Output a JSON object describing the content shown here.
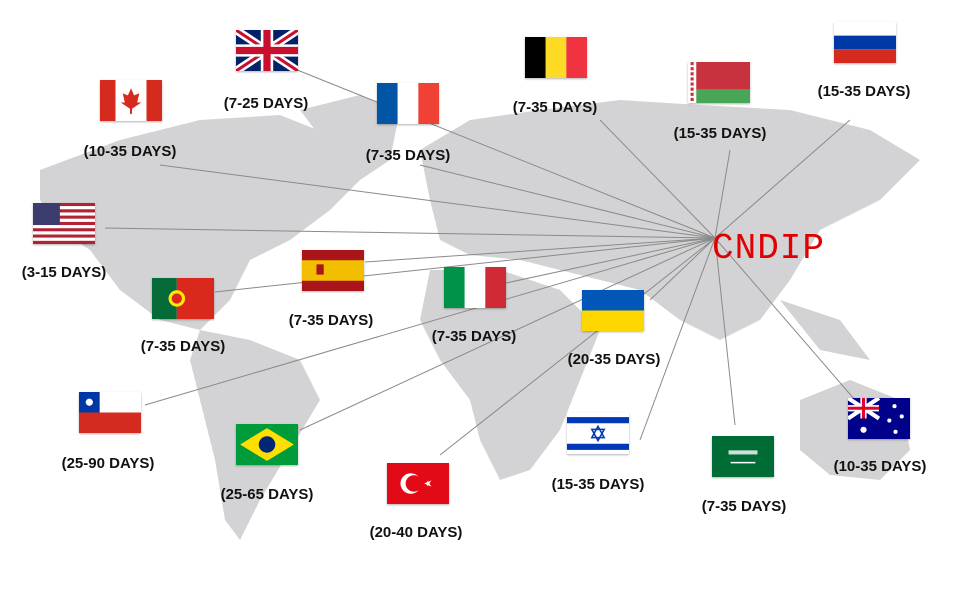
{
  "hub": {
    "label": "CNDIP",
    "color": "#e00000"
  },
  "destinations": [
    {
      "country": "United Kingdom",
      "flag": "uk-flag",
      "days": "(7-25 DAYS)"
    },
    {
      "country": "Canada",
      "flag": "canada-flag",
      "days": "(10-35 DAYS)"
    },
    {
      "country": "France",
      "flag": "france-flag",
      "days": "(7-35 DAYS)"
    },
    {
      "country": "Belgium",
      "flag": "belgium-flag",
      "days": "(7-35 DAYS)"
    },
    {
      "country": "Belarus",
      "flag": "belarus-flag",
      "days": "(15-35 DAYS)"
    },
    {
      "country": "Russia",
      "flag": "russia-flag",
      "days": "(15-35 DAYS)"
    },
    {
      "country": "United States",
      "flag": "usa-flag",
      "days": "(3-15 DAYS)"
    },
    {
      "country": "Spain",
      "flag": "spain-flag",
      "days": "(7-35 DAYS)"
    },
    {
      "country": "Portugal",
      "flag": "portugal-flag",
      "days": "(7-35 DAYS)"
    },
    {
      "country": "Italy",
      "flag": "italy-flag",
      "days": "(7-35 DAYS)"
    },
    {
      "country": "Ukraine",
      "flag": "ukraine-flag",
      "days": "(20-35 DAYS)"
    },
    {
      "country": "Chile",
      "flag": "chile-flag",
      "days": "(25-90 DAYS)"
    },
    {
      "country": "Brazil",
      "flag": "brazil-flag",
      "days": "(25-65 DAYS)"
    },
    {
      "country": "Turkey",
      "flag": "turkey-flag",
      "days": "(20-40 DAYS)"
    },
    {
      "country": "Israel",
      "flag": "israel-flag",
      "days": "(15-35 DAYS)"
    },
    {
      "country": "Saudi Arabia",
      "flag": "saudi-flag",
      "days": "(7-35 DAYS)"
    },
    {
      "country": "Australia",
      "flag": "australia-flag",
      "days": "(10-35 DAYS)"
    }
  ]
}
